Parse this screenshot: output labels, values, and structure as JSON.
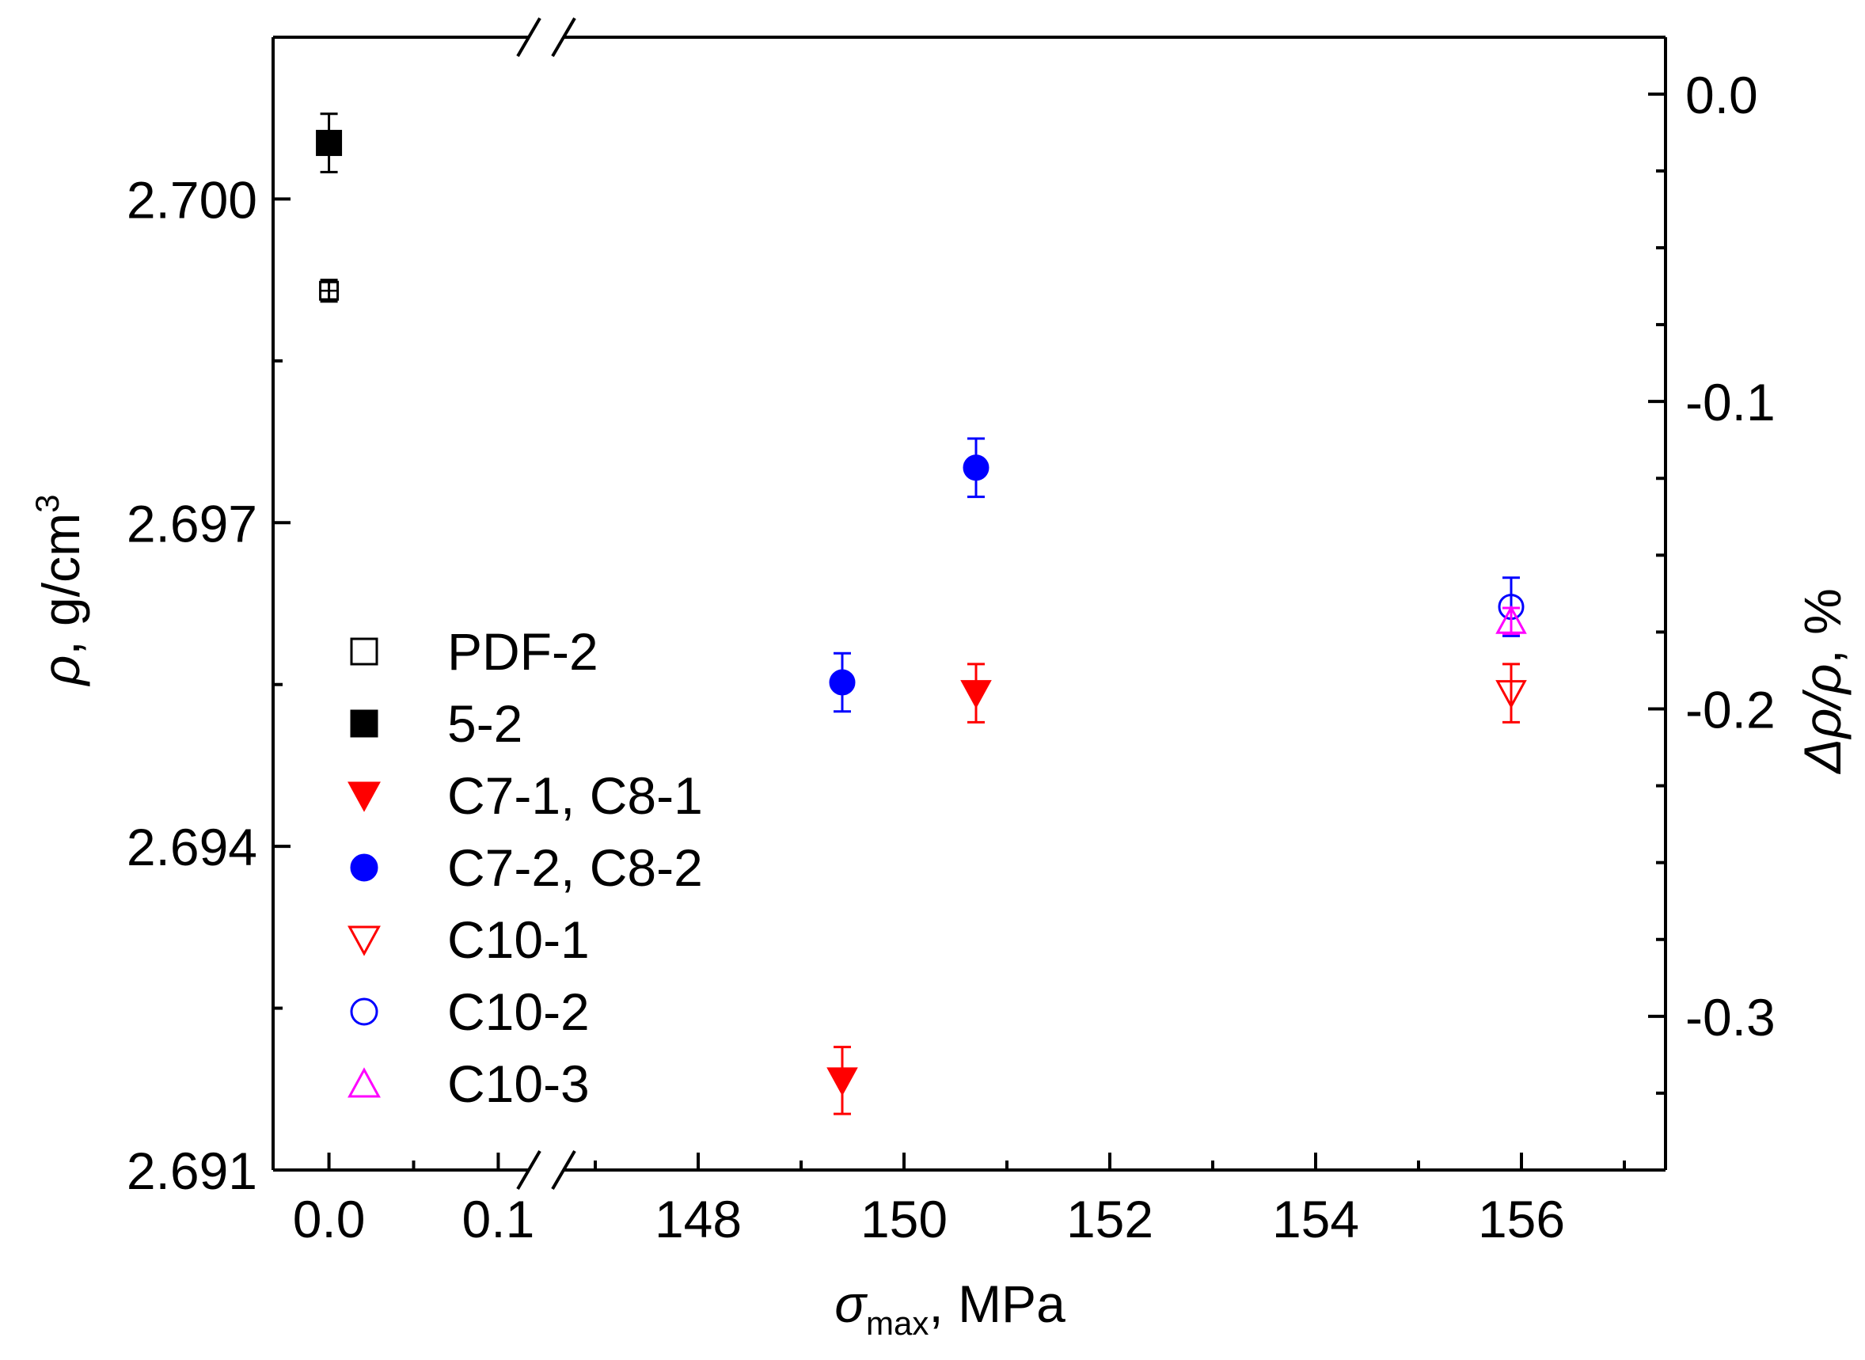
{
  "chart_data": {
    "type": "scatter",
    "x_axis": {
      "label_symbol": "σ",
      "label_subscript": "max",
      "label_unit": ", MPa",
      "segments": [
        {
          "range": [
            -0.033,
            0.133
          ],
          "ticks": [
            {
              "value": 0.0,
              "label": "0.0"
            },
            {
              "value": 0.1,
              "label": "0.1"
            }
          ],
          "minor_ticks": [
            0.05
          ]
        },
        {
          "range": [
            146.6,
            157.4
          ],
          "ticks": [
            {
              "value": 148,
              "label": "148"
            },
            {
              "value": 150,
              "label": "150"
            },
            {
              "value": 152,
              "label": "152"
            },
            {
              "value": 154,
              "label": "154"
            },
            {
              "value": 156,
              "label": "156"
            }
          ],
          "minor_ticks": [
            147,
            149,
            151,
            153,
            155,
            157
          ]
        }
      ],
      "break_between_segments": true
    },
    "y_left": {
      "label_symbol": "ρ",
      "label_unit": ", g/cm",
      "label_sup": "3",
      "ylim": [
        2.691,
        2.7015
      ],
      "ticks": [
        {
          "value": 2.7,
          "label": "2.700"
        },
        {
          "value": 2.697,
          "label": "2.697"
        },
        {
          "value": 2.694,
          "label": "2.694"
        },
        {
          "value": 2.691,
          "label": "2.691"
        }
      ],
      "minor_ticks": [
        2.6925,
        2.6955,
        2.6985,
        2.7015
      ]
    },
    "y_right": {
      "label_prefix": "Δρ/ρ",
      "label_unit": ", %",
      "ylim": [
        -0.35,
        0.0185
      ],
      "ticks": [
        {
          "value": 0.0,
          "label": "0.0"
        },
        {
          "value": -0.1,
          "label": "-0.1"
        },
        {
          "value": -0.2,
          "label": "-0.2"
        },
        {
          "value": -0.3,
          "label": "-0.3"
        }
      ],
      "minor_ticks": [
        -0.025,
        -0.05,
        -0.075,
        -0.125,
        -0.15,
        -0.175,
        -0.225,
        -0.25,
        -0.275,
        -0.325
      ]
    },
    "series": [
      {
        "name": "PDF-2",
        "marker": "square",
        "filled": false,
        "color": "#000000",
        "points": [
          {
            "x": 0.0,
            "y": 2.69915,
            "err": 0.0001
          }
        ]
      },
      {
        "name": "5-2",
        "marker": "square",
        "filled": true,
        "color": "#000000",
        "points": [
          {
            "x": 0.0,
            "y": 2.70052,
            "err": 0.00027
          }
        ]
      },
      {
        "name": "C7-1, C8-1",
        "marker": "triangle-down",
        "filled": true,
        "color": "#ff0000",
        "points": [
          {
            "x": 149.4,
            "y": 2.69183,
            "err": 0.00031
          },
          {
            "x": 150.7,
            "y": 2.69542,
            "err": 0.00027
          }
        ]
      },
      {
        "name": "C7-2, C8-2",
        "marker": "circle",
        "filled": true,
        "color": "#0000ff",
        "points": [
          {
            "x": 149.4,
            "y": 2.69552,
            "err": 0.00027
          },
          {
            "x": 150.7,
            "y": 2.69751,
            "err": 0.00027
          }
        ]
      },
      {
        "name": "C10-1",
        "marker": "triangle-down",
        "filled": false,
        "color": "#ff0000",
        "points": [
          {
            "x": 155.9,
            "y": 2.69542,
            "err": 0.00027
          }
        ]
      },
      {
        "name": "C10-2",
        "marker": "circle",
        "filled": false,
        "color": "#0000ff",
        "points": [
          {
            "x": 155.9,
            "y": 2.69622,
            "err": 0.00027
          }
        ]
      },
      {
        "name": "C10-3",
        "marker": "triangle-up",
        "filled": false,
        "color": "#ff00ff",
        "points": [
          {
            "x": 155.9,
            "y": 2.69609,
            "err": 0.00012
          }
        ]
      }
    ],
    "legend_position": "left-middle"
  }
}
